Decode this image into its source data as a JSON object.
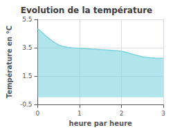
{
  "chart_data": {
    "type": "area",
    "title": "Evolution de la température",
    "xlabel": "heure par heure",
    "ylabel": "Température en °C",
    "x": [
      0,
      0.05,
      0.1,
      0.15,
      0.2,
      0.25,
      0.3,
      0.35,
      0.4,
      0.45,
      0.5,
      0.55,
      0.6,
      0.65,
      0.7,
      0.75,
      0.8,
      0.85,
      0.9,
      0.95,
      1.0,
      1.05,
      1.1,
      1.15,
      1.2,
      1.25,
      1.3,
      1.35,
      1.4,
      1.45,
      1.5,
      1.55,
      1.6,
      1.65,
      1.7,
      1.75,
      1.8,
      1.85,
      1.9,
      1.95,
      2.0,
      2.05,
      2.1,
      2.2,
      2.3,
      2.4,
      2.5,
      2.6,
      2.7,
      2.8,
      2.9,
      3.0
    ],
    "values": [
      4.85,
      4.72,
      4.58,
      4.45,
      4.32,
      4.2,
      4.08,
      3.97,
      3.87,
      3.78,
      3.7,
      3.65,
      3.6,
      3.57,
      3.54,
      3.52,
      3.5,
      3.49,
      3.48,
      3.48,
      3.47,
      3.46,
      3.45,
      3.44,
      3.43,
      3.42,
      3.41,
      3.4,
      3.39,
      3.38,
      3.37,
      3.36,
      3.35,
      3.34,
      3.33,
      3.32,
      3.31,
      3.3,
      3.29,
      3.27,
      3.25,
      3.22,
      3.18,
      3.1,
      3.02,
      2.94,
      2.87,
      2.82,
      2.79,
      2.77,
      2.76,
      2.76
    ],
    "color": "#7dd4e0",
    "xlim": [
      0,
      3
    ],
    "xticks": [
      0,
      1,
      2,
      3
    ],
    "ylim": [
      -0.5,
      5.5
    ],
    "yticks": [
      -0.5,
      1.5,
      3.5,
      5.5
    ],
    "grid": true
  }
}
